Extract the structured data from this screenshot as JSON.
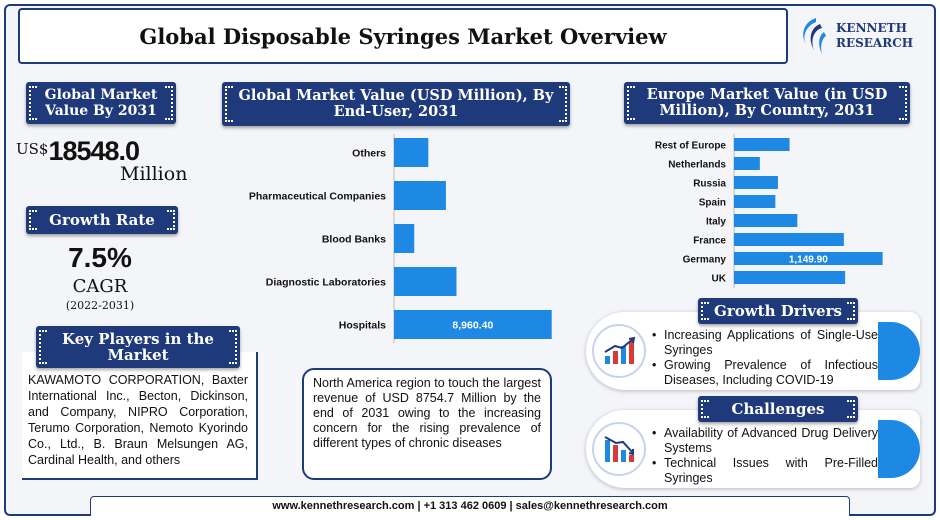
{
  "header": {
    "title": "Global Disposable Syringes Market Overview"
  },
  "logo": {
    "line1": "KENNETH",
    "line2": "RESEARCH",
    "icon": "kenneth-research-logo"
  },
  "market_value": {
    "heading": "Global Market Value By 2031",
    "currency": "US$",
    "value": "18548.0",
    "unit": "Million"
  },
  "growth": {
    "heading": "Growth Rate",
    "rate": "7.5%",
    "label": "CAGR",
    "period": "(2022-2031)"
  },
  "key_players": {
    "heading": "Key Players in the Market",
    "text": "KAWAMOTO CORPORATION, Baxter International Inc., Becton, Dickinson, and Company, NIPRO Corporation, Terumo Corporation, Nemoto Kyorindo Co., Ltd., B. Braun Melsungen AG, Cardinal Health, and others"
  },
  "north_america": {
    "text": "North America region to touch the largest revenue of USD 8754.7 Million  by the end of 2031 owing to the increasing concern for the rising prevalence of different types of chronic diseases"
  },
  "chart_data": [
    {
      "type": "bar",
      "orientation": "horizontal",
      "title": "Global Market Value (USD Million), By End-User, 2031",
      "categories": [
        "Others",
        "Pharmaceutical Companies",
        "Blood Banks",
        "Diagnostic Laboratories",
        "Hospitals"
      ],
      "values": [
        1950,
        2950,
        1150,
        3550,
        8960.4
      ],
      "data_labels": [
        "",
        "",
        "",
        "",
        "8,960.40"
      ],
      "xlim": [
        0,
        10000
      ],
      "bar_color": "#1e88e5"
    },
    {
      "type": "bar",
      "orientation": "horizontal",
      "title": "Europe Market Value (in USD Million), By Country, 2031",
      "categories": [
        "Rest of Europe",
        "Netherlands",
        "Russia",
        "Spain",
        "Italy",
        "France",
        "Germany",
        "UK"
      ],
      "values": [
        430,
        200,
        340,
        320,
        490,
        850,
        1149.9,
        860
      ],
      "data_labels": [
        "",
        "",
        "",
        "",
        "",
        "",
        "1,149.90",
        ""
      ],
      "xlim": [
        0,
        1300
      ],
      "bar_color": "#1e88e5"
    }
  ],
  "drivers": {
    "heading": "Growth Drivers",
    "icon": "growth-chart-icon",
    "items": [
      "Increasing Applications of Single-Use Syringes",
      "Growing Prevalence of Infectious Diseases, Including COVID-19"
    ]
  },
  "challenges": {
    "heading": "Challenges",
    "icon": "declining-chart-icon",
    "items": [
      "Availability of Advanced Drug Delivery Systems",
      "Technical Issues with Pre-Filled Syringes"
    ]
  },
  "footer": {
    "text": "www.kennethresearch.com | +1 313 462 0609 | sales@kennethresearch.com"
  },
  "colors": {
    "navy": "#1f3a7a",
    "bar": "#1e88e5",
    "accent_red": "#d83a3a"
  }
}
